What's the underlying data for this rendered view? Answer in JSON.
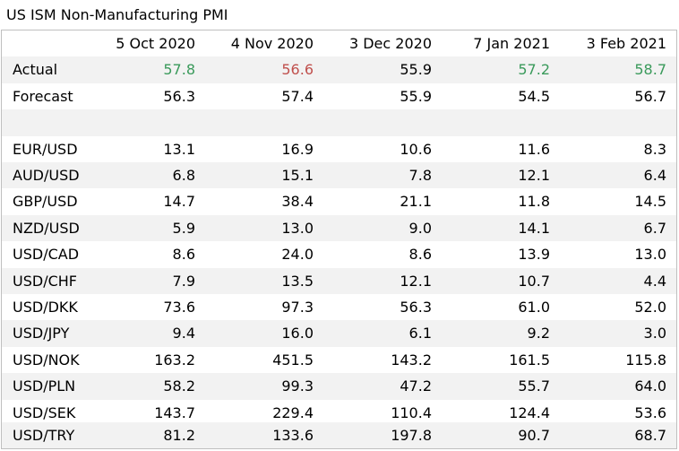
{
  "title": "US ISM Non-Manufacturing PMI",
  "headers": [
    "5 Oct 2020",
    "4 Nov 2020",
    "3 Dec 2020",
    "7 Jan 2021",
    "3 Feb 2021"
  ],
  "actual": {
    "label": "Actual",
    "values": [
      "57.8",
      "56.6",
      "55.9",
      "57.2",
      "58.7"
    ],
    "colors": [
      "#3a9a5b",
      "#c0504d",
      "#000000",
      "#3a9a5b",
      "#3a9a5b"
    ]
  },
  "forecast": {
    "label": "Forecast",
    "values": [
      "56.3",
      "57.4",
      "55.9",
      "54.5",
      "56.7"
    ]
  },
  "pairs": [
    {
      "label": "EUR/USD",
      "values": [
        "13.1",
        "16.9",
        "10.6",
        "11.6",
        "8.3"
      ]
    },
    {
      "label": "AUD/USD",
      "values": [
        "6.8",
        "15.1",
        "7.8",
        "12.1",
        "6.4"
      ]
    },
    {
      "label": "GBP/USD",
      "values": [
        "14.7",
        "38.4",
        "21.1",
        "11.8",
        "14.5"
      ]
    },
    {
      "label": "NZD/USD",
      "values": [
        "5.9",
        "13.0",
        "9.0",
        "14.1",
        "6.7"
      ]
    },
    {
      "label": "USD/CAD",
      "values": [
        "8.6",
        "24.0",
        "8.6",
        "13.9",
        "13.0"
      ]
    },
    {
      "label": "USD/CHF",
      "values": [
        "7.9",
        "13.5",
        "12.1",
        "10.7",
        "4.4"
      ]
    },
    {
      "label": "USD/DKK",
      "values": [
        "73.6",
        "97.3",
        "56.3",
        "61.0",
        "52.0"
      ]
    },
    {
      "label": "USD/JPY",
      "values": [
        "9.4",
        "16.0",
        "6.1",
        "9.2",
        "3.0"
      ]
    },
    {
      "label": "USD/NOK",
      "values": [
        "163.2",
        "451.5",
        "143.2",
        "161.5",
        "115.8"
      ]
    },
    {
      "label": "USD/PLN",
      "values": [
        "58.2",
        "99.3",
        "47.2",
        "55.7",
        "64.0"
      ]
    },
    {
      "label": "USD/SEK",
      "values": [
        "143.7",
        "229.4",
        "110.4",
        "124.4",
        "53.6"
      ]
    },
    {
      "label": "USD/TRY",
      "values": [
        "81.2",
        "133.6",
        "197.8",
        "90.7",
        "68.7"
      ]
    }
  ]
}
